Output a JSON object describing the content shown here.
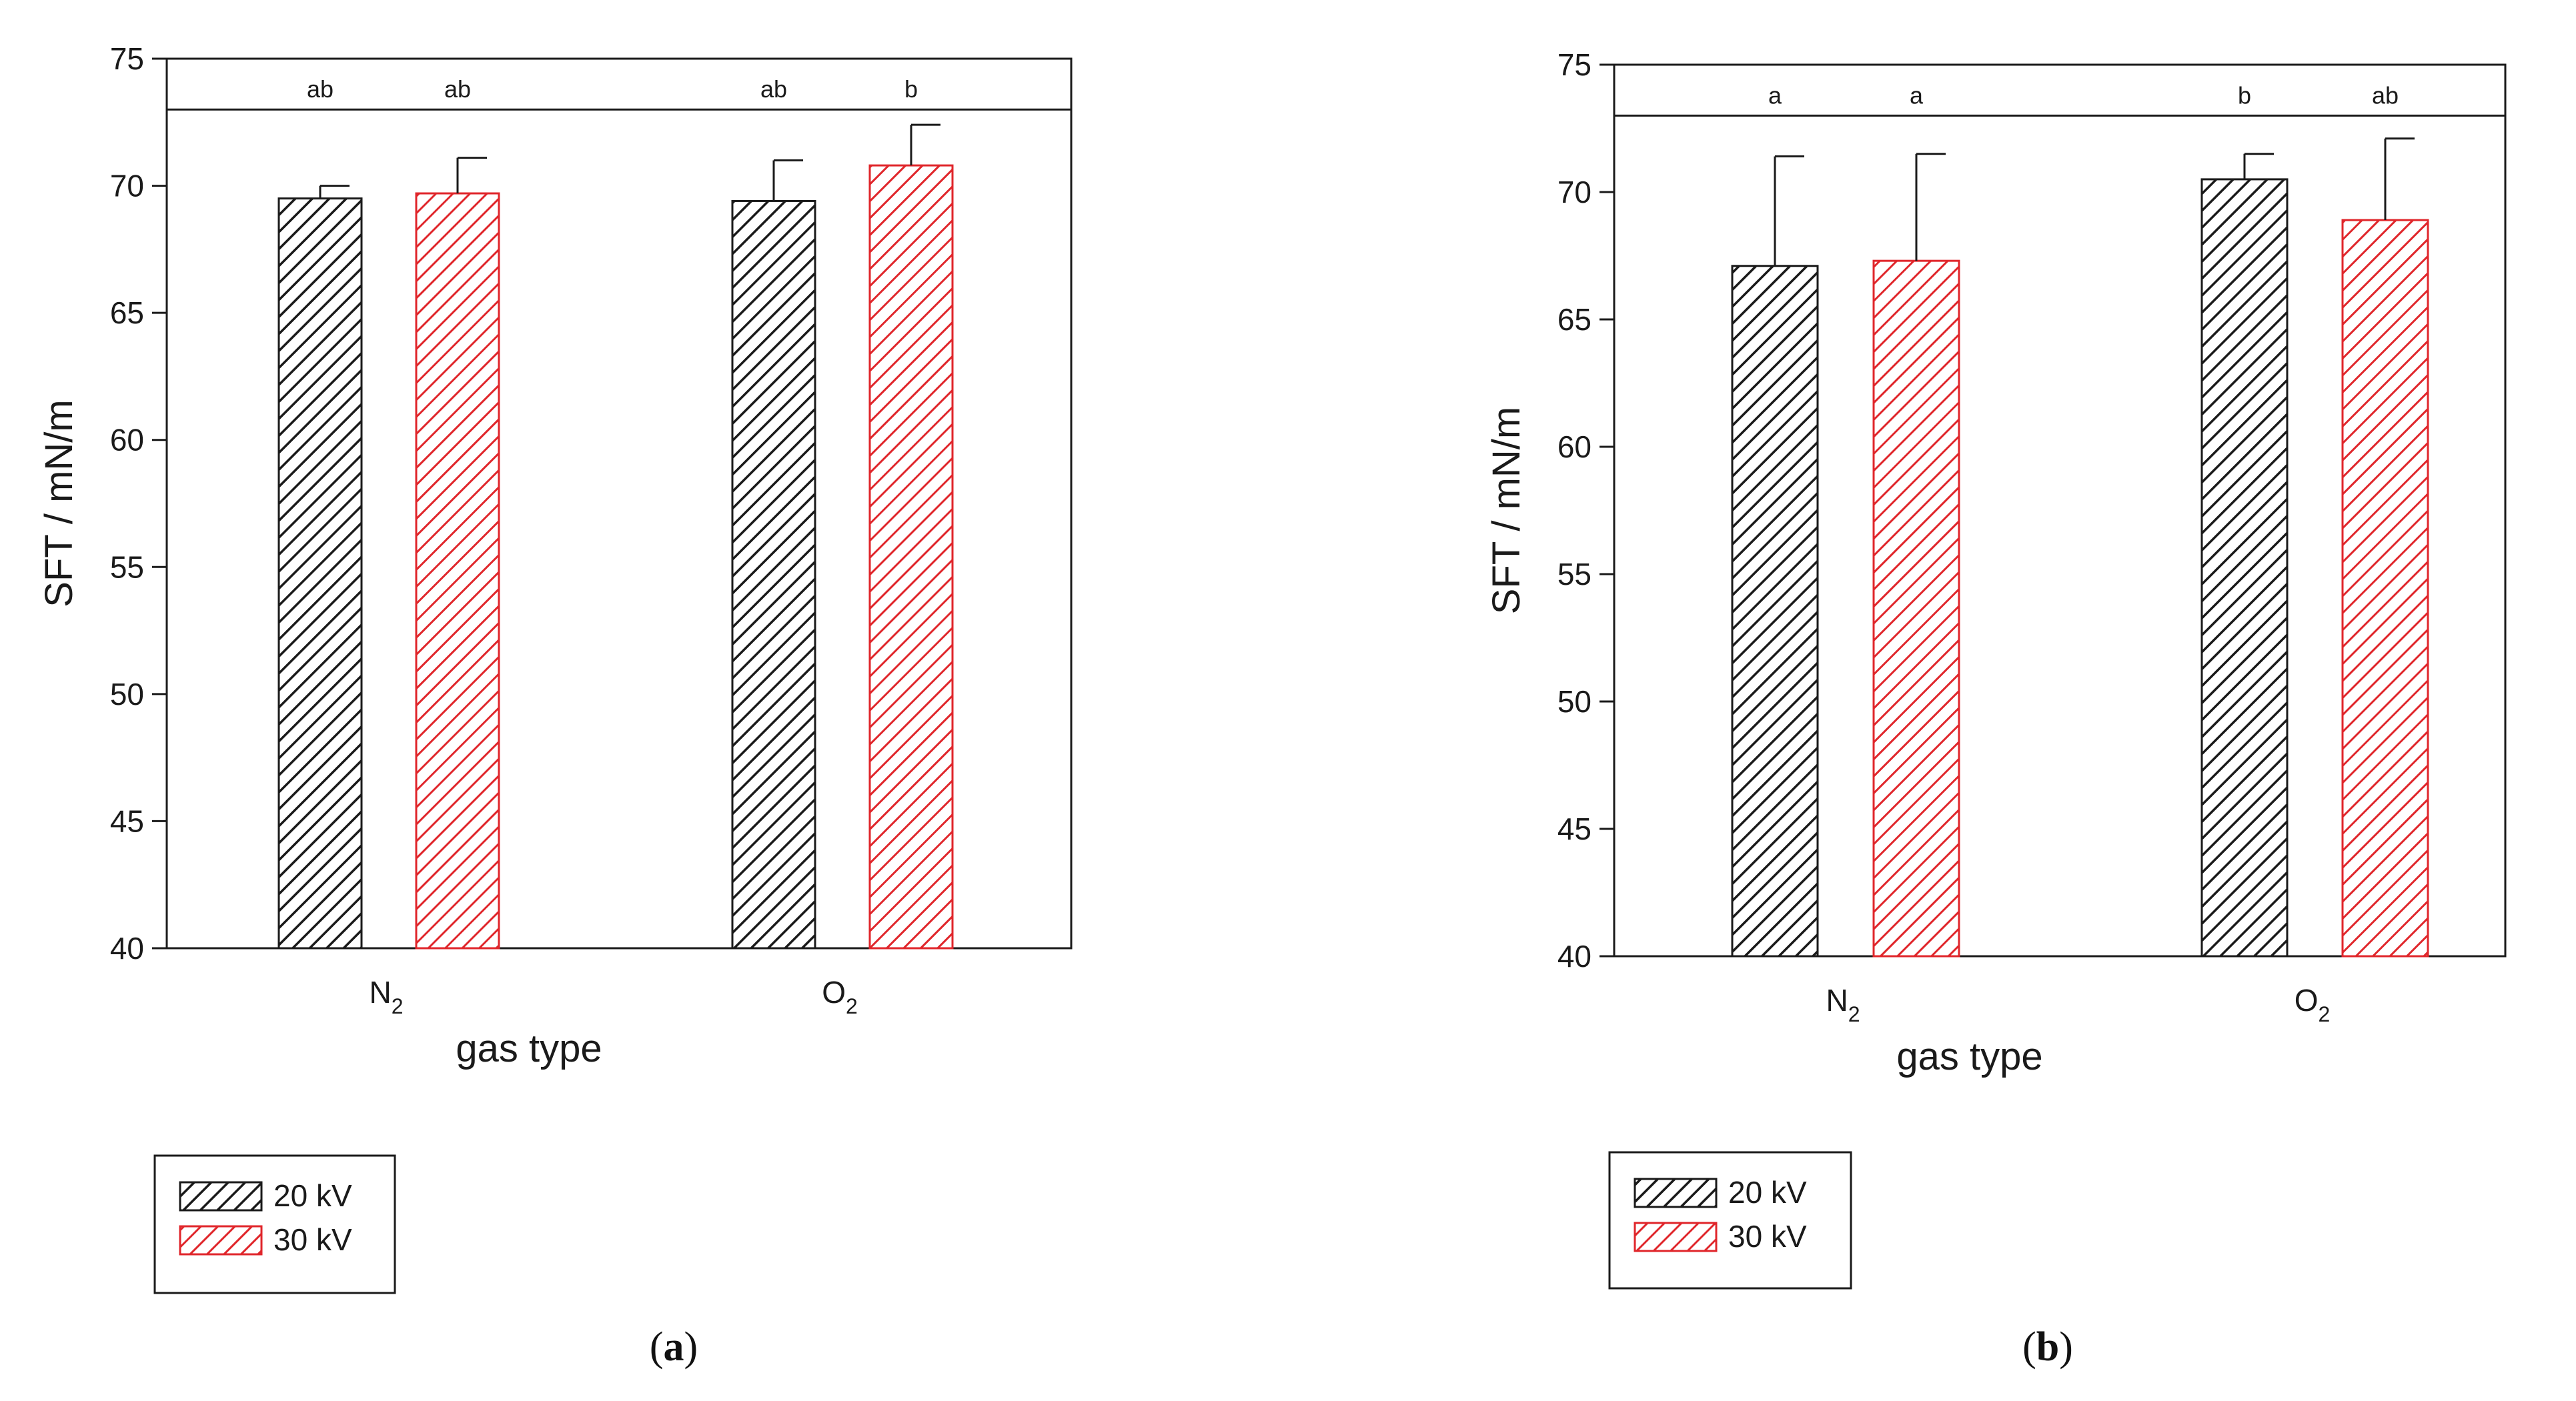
{
  "colors": {
    "series_20kv": "#1a1a1a",
    "series_30kv": "#e0262b",
    "axis": "#1a1a1a"
  },
  "chart_data": [
    {
      "type": "bar",
      "panel_label": "a",
      "xlabel": "gas type",
      "ylabel": "SFT / mN/m",
      "ylim": [
        40,
        75
      ],
      "yticks": [
        "40",
        "45",
        "50",
        "55",
        "60",
        "65",
        "70",
        "75"
      ],
      "categories": [
        {
          "main": "N",
          "sub": "2"
        },
        {
          "main": "O",
          "sub": "2"
        }
      ],
      "significance_line": 73,
      "series": [
        {
          "name": "20 kV",
          "values": [
            69.5,
            69.4
          ],
          "errors": [
            0.5,
            1.6
          ],
          "letters": [
            "ab",
            "ab"
          ]
        },
        {
          "name": "30 kV",
          "values": [
            69.7,
            70.8
          ],
          "errors": [
            1.4,
            1.6
          ],
          "letters": [
            "ab",
            "b"
          ]
        }
      ],
      "legend": [
        "20 kV",
        "30 kV"
      ]
    },
    {
      "type": "bar",
      "panel_label": "b",
      "xlabel": "gas type",
      "ylabel": "SFT / mN/m",
      "ylim": [
        40,
        75
      ],
      "yticks": [
        "40",
        "45",
        "50",
        "55",
        "60",
        "65",
        "70",
        "75"
      ],
      "categories": [
        {
          "main": "N",
          "sub": "2"
        },
        {
          "main": "O",
          "sub": "2"
        }
      ],
      "significance_line": 73,
      "series": [
        {
          "name": "20 kV",
          "values": [
            67.1,
            70.5
          ],
          "errors": [
            4.3,
            1.0
          ],
          "letters": [
            "a",
            "b"
          ]
        },
        {
          "name": "30 kV",
          "values": [
            67.3,
            68.9
          ],
          "errors": [
            4.2,
            3.2
          ],
          "letters": [
            "a",
            "ab"
          ]
        }
      ],
      "legend": [
        "20 kV",
        "30 kV"
      ]
    }
  ]
}
